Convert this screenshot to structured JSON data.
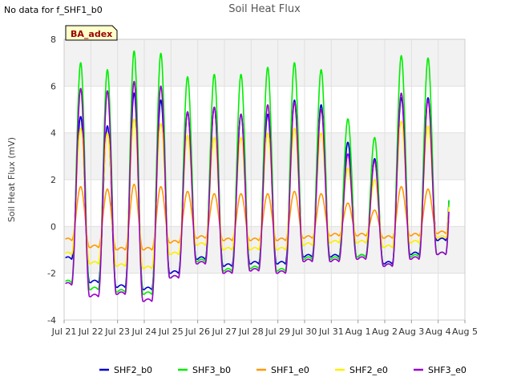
{
  "note": "No data for f_SHF1_b0",
  "chart_data": {
    "type": "line",
    "title": "Soil Heat Flux",
    "xlabel": "",
    "ylabel": "Soil Heat Flux (mV)",
    "ylim": [
      -4,
      8
    ],
    "yticks": [
      -4,
      -2,
      0,
      2,
      4,
      6,
      8
    ],
    "xlim": [
      0,
      15
    ],
    "xticks": [
      0,
      1,
      2,
      3,
      4,
      5,
      6,
      7,
      8,
      9,
      10,
      11,
      12,
      13,
      14,
      15
    ],
    "xtick_labels": [
      "Jul 21",
      "Jul 22",
      "Jul 23",
      "Jul 24",
      "Jul 25",
      "Jul 26",
      "Jul 27",
      "Jul 28",
      "Jul 29",
      "Jul 30",
      "Jul 31",
      "Aug 1",
      "Aug 2",
      "Aug 3",
      "Aug 4",
      "Aug 5"
    ],
    "site_label": "BA_adex",
    "grid": true,
    "legend_position": "bottom",
    "series": [
      {
        "name": "SHF2_b0",
        "color": "#0000cc",
        "start": 0.05,
        "end": 14.4,
        "peaks": [
          4.7,
          4.3,
          5.7,
          5.4,
          4.9,
          5.1,
          4.8,
          4.8,
          5.4,
          5.2,
          3.6,
          2.9,
          5.5,
          5.5
        ],
        "troughs": [
          -1.4,
          -2.4,
          -2.6,
          -2.7,
          -2.0,
          -1.4,
          -1.7,
          -1.6,
          -1.6,
          -1.3,
          -1.3,
          -1.3,
          -1.6,
          -1.2,
          -0.6
        ]
      },
      {
        "name": "SHF3_b0",
        "color": "#00ee00",
        "start": 0.05,
        "end": 14.4,
        "peaks": [
          7.0,
          6.7,
          7.5,
          7.4,
          6.4,
          6.5,
          6.5,
          6.8,
          7.0,
          6.7,
          4.6,
          3.8,
          7.3,
          7.2
        ],
        "troughs": [
          -2.4,
          -2.7,
          -2.8,
          -2.9,
          -2.2,
          -1.5,
          -1.9,
          -1.8,
          -1.9,
          -1.4,
          -1.4,
          -1.3,
          -1.7,
          -1.3,
          -1.2
        ]
      },
      {
        "name": "SHF1_e0",
        "color": "#ff9900",
        "start": 0.05,
        "end": 14.4,
        "peaks": [
          1.7,
          1.6,
          1.8,
          1.7,
          1.5,
          1.4,
          1.4,
          1.4,
          1.5,
          1.4,
          1.0,
          0.7,
          1.7,
          1.6
        ],
        "troughs": [
          -0.6,
          -0.9,
          -1.0,
          -1.0,
          -0.7,
          -0.5,
          -0.6,
          -0.6,
          -0.6,
          -0.5,
          -0.4,
          -0.4,
          -0.5,
          -0.4,
          -0.3
        ]
      },
      {
        "name": "SHF2_e0",
        "color": "#ffee00",
        "start": 0.05,
        "end": 14.4,
        "peaks": [
          4.2,
          4.0,
          4.6,
          4.4,
          3.9,
          3.8,
          3.8,
          4.0,
          4.2,
          4.0,
          2.5,
          2.0,
          4.5,
          4.3
        ],
        "troughs": [
          -1.2,
          -1.6,
          -1.7,
          -1.8,
          -1.2,
          -0.8,
          -1.0,
          -1.0,
          -1.0,
          -0.8,
          -0.7,
          -0.7,
          -0.9,
          -0.7,
          -0.5
        ]
      },
      {
        "name": "SHF3_e0",
        "color": "#9900cc",
        "start": 0.05,
        "end": 14.4,
        "peaks": [
          5.9,
          5.8,
          6.2,
          6.0,
          4.9,
          5.1,
          4.8,
          5.2,
          5.3,
          5.0,
          3.1,
          2.8,
          5.7,
          5.4
        ],
        "troughs": [
          -2.5,
          -3.0,
          -2.9,
          -3.2,
          -2.2,
          -1.6,
          -2.0,
          -1.9,
          -2.0,
          -1.5,
          -1.5,
          -1.4,
          -1.7,
          -1.4,
          -1.2
        ]
      }
    ]
  }
}
